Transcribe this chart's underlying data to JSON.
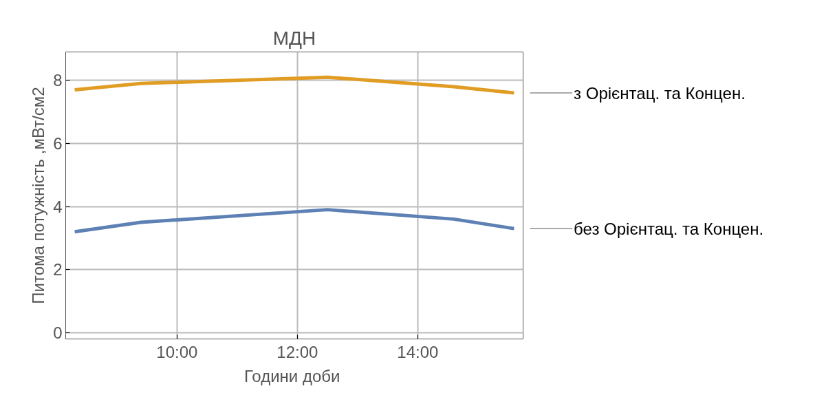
{
  "chart_data": {
    "type": "line",
    "title": "МДН",
    "xlabel": "Години  доби",
    "ylabel": "Питома потужність ,мВт/см2",
    "x": [
      8.3,
      9.4,
      12.5,
      14.6,
      15.6
    ],
    "series": [
      {
        "name": "з Орієнтац. та Концен.",
        "color": "#e19c24",
        "values": [
          7.7,
          7.9,
          8.1,
          7.8,
          7.6
        ]
      },
      {
        "name": "без Орієнтац. та Концен.",
        "color": "#5e81b5",
        "values": [
          3.2,
          3.5,
          3.9,
          3.6,
          3.3
        ]
      }
    ],
    "xlim": [
      8.15,
      15.75
    ],
    "ylim": [
      -0.2,
      8.9
    ],
    "xticks": [
      {
        "value": 10,
        "label": "10:00"
      },
      {
        "value": 12,
        "label": "12:00"
      },
      {
        "value": 14,
        "label": "14:00"
      }
    ],
    "yticks": [
      0,
      2,
      4,
      6,
      8
    ],
    "grid": true
  }
}
